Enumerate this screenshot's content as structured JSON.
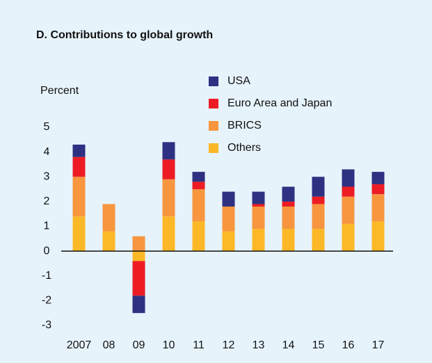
{
  "chart_data": {
    "type": "stacked_bar",
    "title": "D. Contributions to global growth",
    "y_label": "Percent",
    "categories": [
      "2007",
      "08",
      "09",
      "10",
      "11",
      "12",
      "13",
      "14",
      "15",
      "16",
      "17"
    ],
    "series": [
      {
        "name": "Others",
        "color": "#fdb827",
        "values": [
          1.4,
          0.8,
          -0.4,
          1.4,
          1.2,
          0.8,
          0.9,
          0.9,
          0.9,
          1.1,
          1.2
        ]
      },
      {
        "name": "BRICS",
        "color": "#f7963f",
        "values": [
          1.6,
          1.1,
          0.6,
          1.5,
          1.3,
          1.0,
          0.9,
          0.9,
          1.0,
          1.1,
          1.1
        ]
      },
      {
        "name": "Euro Area and Japan",
        "color": "#ed1c24",
        "values": [
          0.8,
          0,
          -1.4,
          0.8,
          0.3,
          0,
          0.1,
          0.2,
          0.3,
          0.4,
          0.4
        ]
      },
      {
        "name": "USA",
        "color": "#2e3182",
        "values": [
          0.5,
          0,
          -0.7,
          0.7,
          0.4,
          0.6,
          0.5,
          0.6,
          0.8,
          0.7,
          0.5
        ]
      }
    ],
    "ylim": [
      -3,
      5
    ],
    "yticks": [
      -3,
      -2,
      -1,
      0,
      1,
      2,
      3,
      4,
      5
    ]
  }
}
